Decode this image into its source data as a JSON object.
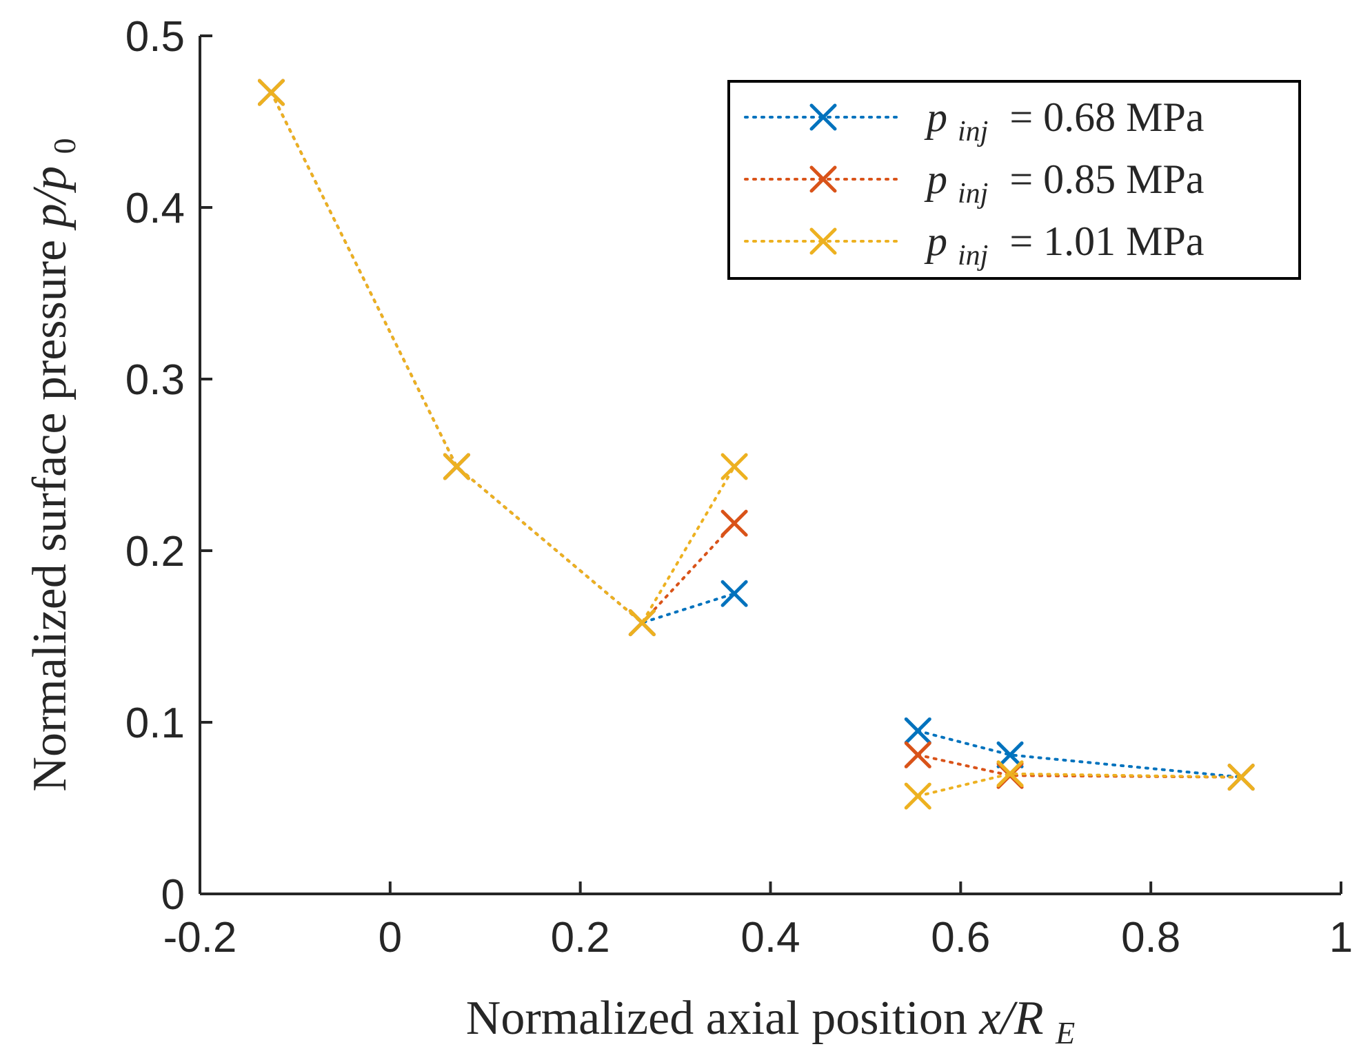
{
  "chart_data": {
    "type": "line",
    "xlabel": "Normalized axial position x/R_E",
    "ylabel": "Normalized surface pressure p/p_0",
    "xlim": [
      -0.2,
      1
    ],
    "ylim": [
      0,
      0.5
    ],
    "xticks": [
      "-0.2",
      "0",
      "0.2",
      "0.4",
      "0.6",
      "0.8",
      "1"
    ],
    "yticks": [
      "0",
      "0.1",
      "0.2",
      "0.3",
      "0.4",
      "0.5"
    ],
    "grid": false,
    "legend_position": "top-right",
    "line_style": "dotted",
    "marker": "x",
    "series": [
      {
        "name": "p_inj = 0.68 MPa",
        "color": "#0072BD",
        "segments": [
          [
            [
              -0.125,
              0.467
            ],
            [
              0.07,
              0.249
            ],
            [
              0.265,
              0.158
            ],
            [
              0.362,
              0.175
            ]
          ],
          [
            [
              0.555,
              0.095
            ],
            [
              0.652,
              0.081
            ],
            [
              0.895,
              0.068
            ]
          ]
        ]
      },
      {
        "name": "p_inj = 0.85 MPa",
        "color": "#D95319",
        "segments": [
          [
            [
              -0.125,
              0.467
            ],
            [
              0.07,
              0.249
            ],
            [
              0.265,
              0.158
            ],
            [
              0.362,
              0.216
            ]
          ],
          [
            [
              0.555,
              0.081
            ],
            [
              0.652,
              0.069
            ],
            [
              0.895,
              0.068
            ]
          ]
        ]
      },
      {
        "name": "p_inj = 1.01 MPa",
        "color": "#EDB120",
        "segments": [
          [
            [
              -0.125,
              0.467
            ],
            [
              0.07,
              0.249
            ],
            [
              0.265,
              0.158
            ],
            [
              0.362,
              0.249
            ]
          ],
          [
            [
              0.555,
              0.057
            ],
            [
              0.652,
              0.07
            ],
            [
              0.895,
              0.068
            ]
          ]
        ]
      }
    ],
    "legend": {
      "entries": [
        {
          "prefix": "p",
          "sub": "inj",
          "value": "= 0.68 MPa"
        },
        {
          "prefix": "p",
          "sub": "inj",
          "value": "= 0.85 MPa"
        },
        {
          "prefix": "p",
          "sub": "inj",
          "value": "= 1.01 MPa"
        }
      ]
    },
    "xlabel_parts": {
      "text": "Normalized axial position",
      "math": "x/R",
      "sub": "E"
    },
    "ylabel_parts": {
      "text": "Normalized surface pressure",
      "math": "p/p",
      "sub": "0"
    }
  }
}
